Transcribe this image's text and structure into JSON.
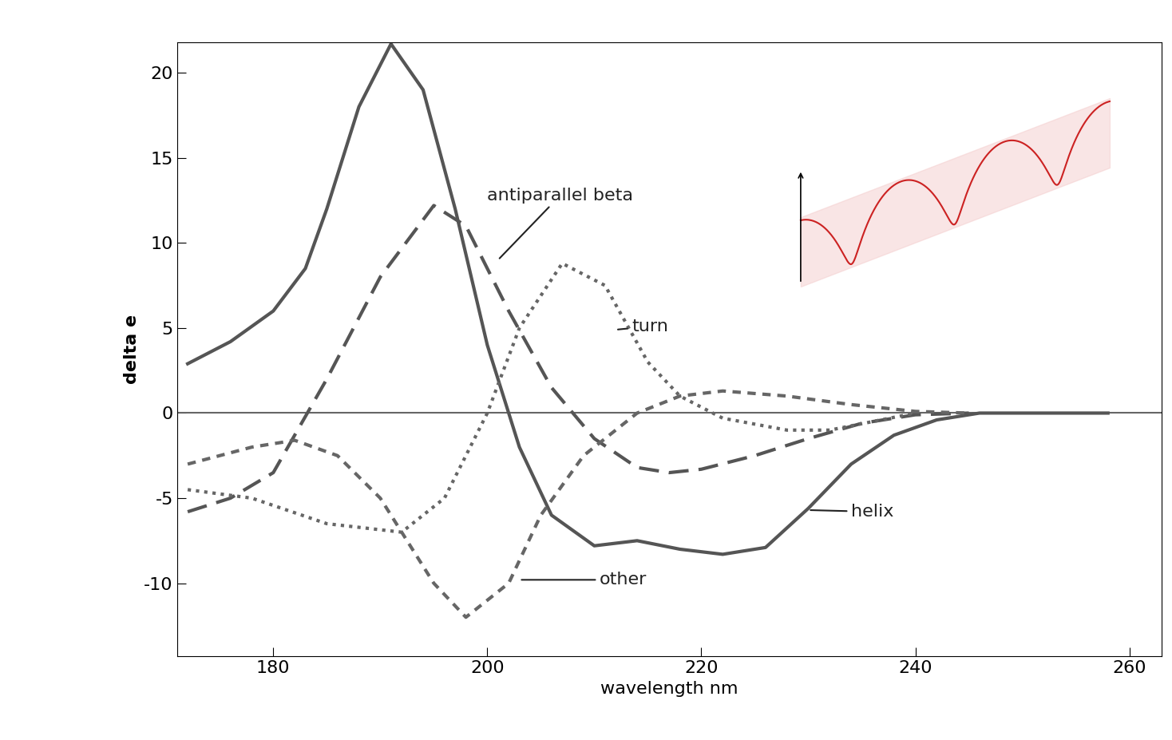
{
  "chart_data": {
    "type": "line",
    "x_label": "wavelength nm",
    "y_label": "delta e",
    "xlim": [
      171,
      263
    ],
    "ylim": [
      -14.3,
      21.8
    ],
    "xticks": [
      180,
      200,
      220,
      240,
      260
    ],
    "yticks": [
      -10,
      -5,
      0,
      5,
      10,
      15,
      20
    ],
    "grid": false,
    "series": [
      {
        "name": "helix",
        "color": "#555555",
        "line_style": "solid",
        "x": [
          172,
          176,
          180,
          183,
          185,
          188,
          191,
          194,
          197,
          200,
          203,
          206,
          210,
          214,
          218,
          222,
          226,
          230,
          234,
          238,
          242,
          246,
          258
        ],
        "values": [
          2.9,
          4.2,
          6,
          8.5,
          12,
          18,
          21.7,
          19,
          12,
          4,
          -2,
          -6,
          -7.8,
          -7.5,
          -8,
          -8.3,
          -7.9,
          -5.6,
          -3,
          -1.3,
          -0.4,
          0,
          0
        ]
      },
      {
        "name": "antiparallel beta",
        "color": "#555555",
        "line_style": "dashed",
        "x": [
          172,
          176,
          180,
          185,
          190,
          195,
          198,
          202,
          206,
          210,
          214,
          217,
          220,
          225,
          230,
          235,
          240,
          245
        ],
        "values": [
          -5.8,
          -5,
          -3.5,
          2,
          8,
          12.2,
          11,
          6,
          1.5,
          -1.5,
          -3.2,
          -3.5,
          -3.3,
          -2.5,
          -1.5,
          -0.6,
          -0.1,
          0
        ]
      },
      {
        "name": "turn",
        "color": "#666666",
        "line_style": "dotted",
        "x": [
          172,
          178,
          185,
          192,
          196,
          200,
          203,
          207,
          211,
          215,
          218,
          222,
          228,
          232,
          236,
          240
        ],
        "values": [
          -4.5,
          -5,
          -6.5,
          -7,
          -5,
          0,
          5,
          8.8,
          7.5,
          3,
          1,
          -0.3,
          -1,
          -1,
          -0.5,
          0
        ]
      },
      {
        "name": "other",
        "color": "#666666",
        "line_style": "short_dashed",
        "x": [
          172,
          178,
          182,
          186,
          190,
          195,
          198,
          202,
          205,
          209,
          214,
          218,
          222,
          228,
          234,
          240,
          245
        ],
        "values": [
          -3,
          -2,
          -1.6,
          -2.5,
          -5,
          -10,
          -12,
          -10,
          -6,
          -2.5,
          0,
          1,
          1.3,
          1,
          0.5,
          0.1,
          0
        ]
      }
    ]
  }
}
